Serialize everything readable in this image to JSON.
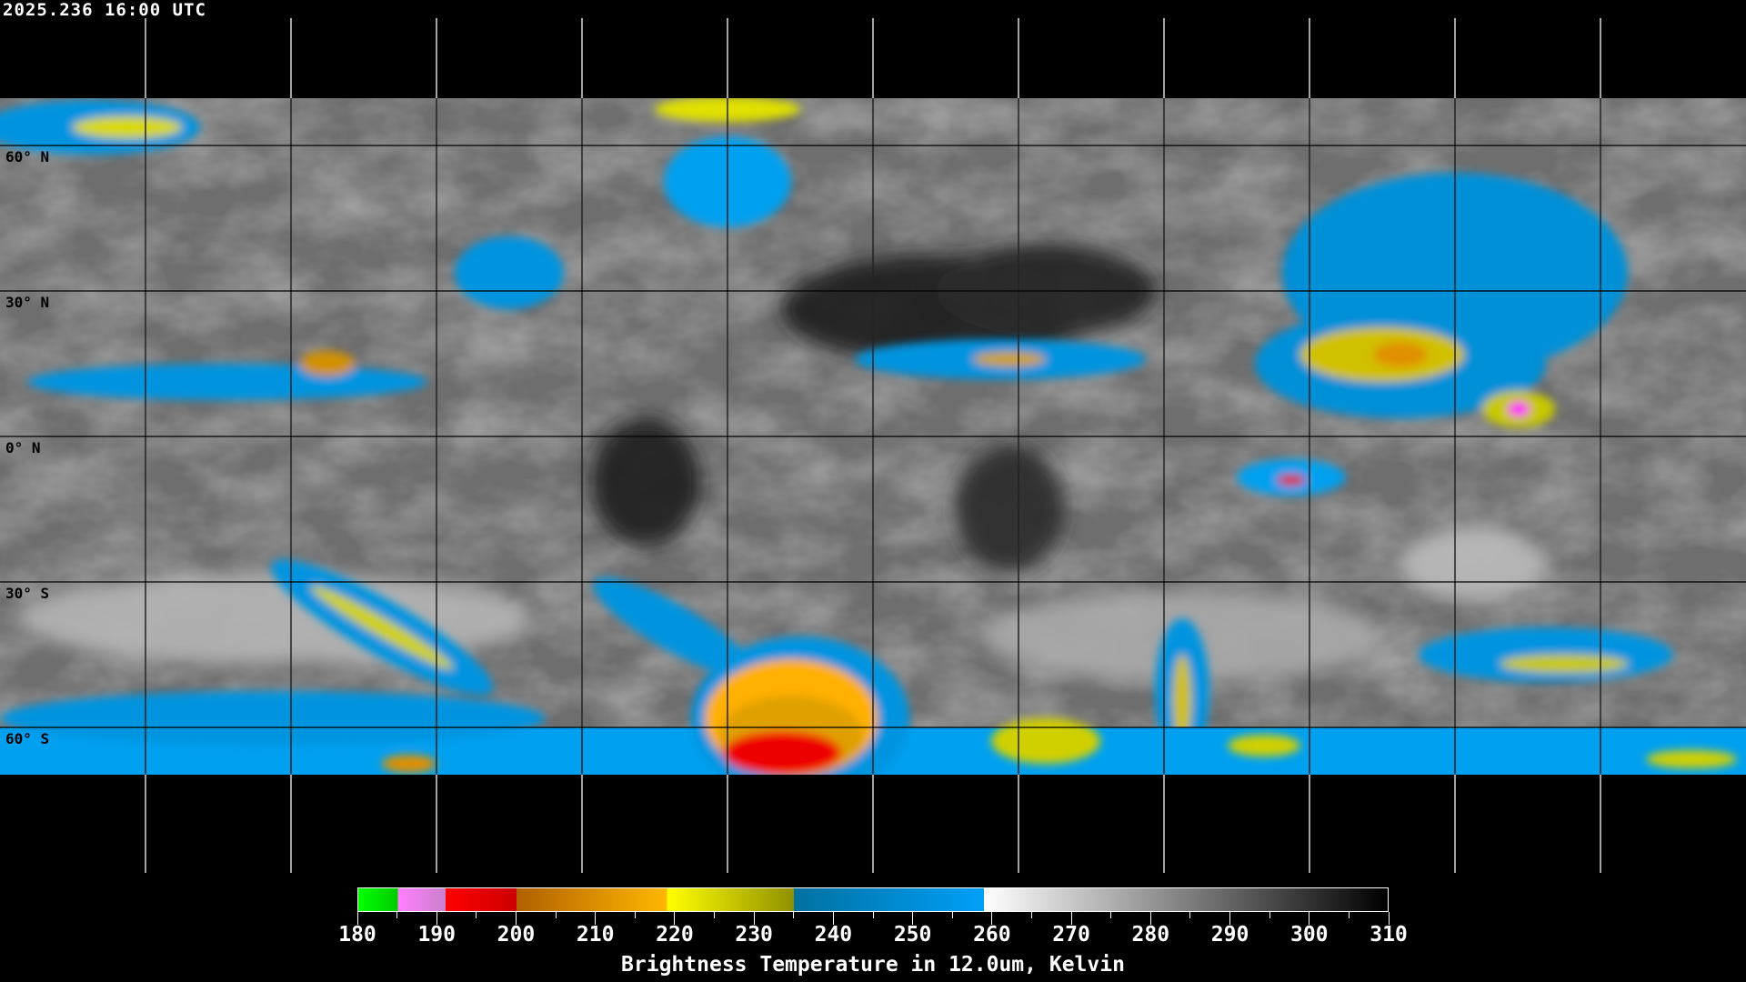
{
  "title": "2025.236 16:00 UTC",
  "map": {
    "projection": "equirectangular",
    "lon_grid_step_deg": 30,
    "lat_labels": [
      "60° N",
      "30° N",
      "0° N",
      "30° S",
      "60° S"
    ],
    "lat_values": [
      60,
      30,
      0,
      -30,
      -60
    ]
  },
  "colorbar": {
    "title": "Brightness Temperature in 12.0um, Kelvin",
    "min": 180,
    "max": 310,
    "tick_labels": [
      "180",
      "190",
      "200",
      "210",
      "220",
      "230",
      "240",
      "250",
      "260",
      "270",
      "280",
      "290",
      "300",
      "310"
    ],
    "segments": [
      {
        "from": 180,
        "to": 185,
        "c1": "#00ff00",
        "c2": "#00cc00"
      },
      {
        "from": 185,
        "to": 191,
        "c1": "#ff80ff",
        "c2": "#cc80cc"
      },
      {
        "from": 191,
        "to": 200,
        "c1": "#ff0000",
        "c2": "#cc0000"
      },
      {
        "from": 200,
        "to": 219,
        "c1": "#b06000",
        "c2": "#ffb800"
      },
      {
        "from": 219,
        "to": 235,
        "c1": "#ffff00",
        "c2": "#909000"
      },
      {
        "from": 235,
        "to": 259,
        "c1": "#0070a0",
        "c2": "#00a0f8"
      },
      {
        "from": 259,
        "to": 310,
        "c1": "#ffffff",
        "c2": "#000000"
      }
    ]
  }
}
